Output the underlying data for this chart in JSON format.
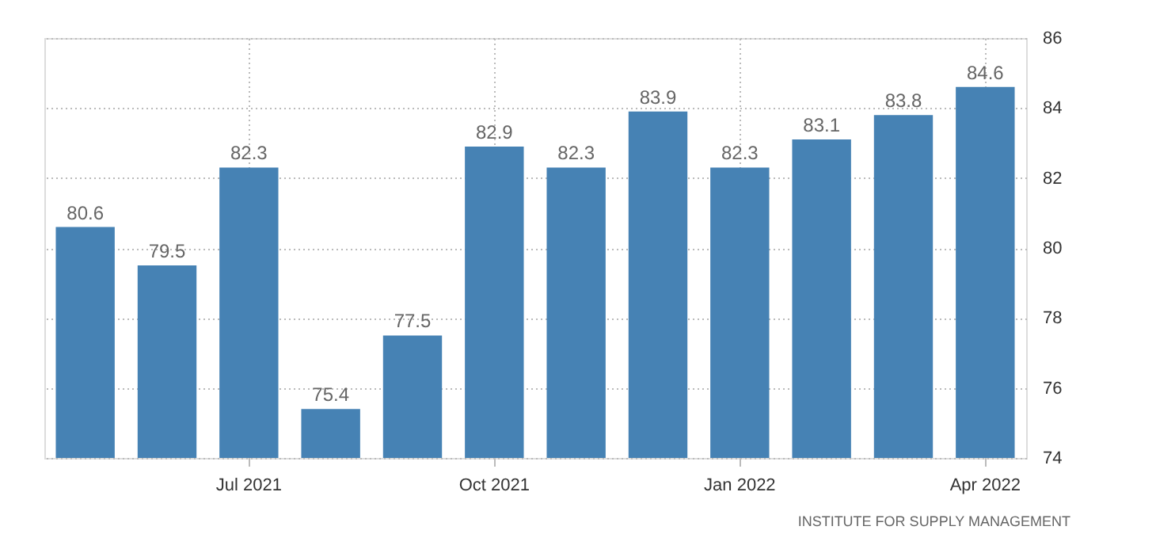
{
  "chart_data": {
    "type": "bar",
    "categories": [
      null,
      null,
      "Jul 2021",
      null,
      null,
      "Oct 2021",
      null,
      null,
      "Jan 2022",
      null,
      null,
      "Apr 2022"
    ],
    "values": [
      80.6,
      79.5,
      82.3,
      75.4,
      77.5,
      82.9,
      82.3,
      83.9,
      82.3,
      83.1,
      83.8,
      84.6
    ],
    "color": "#4682b4",
    "ylim": [
      74,
      86
    ],
    "yticks": [
      74,
      76,
      78,
      80,
      82,
      84,
      86
    ],
    "grid": true,
    "data_labels": true,
    "annotations": [
      "INSTITUTE FOR SUPPLY MANAGEMENT"
    ]
  }
}
